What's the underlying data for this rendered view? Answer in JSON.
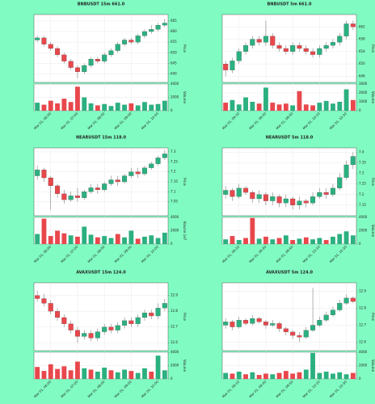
{
  "chart_data": [
    {
      "type": "candlestick",
      "title": "BNBUSDT 15m 661.0",
      "ylabel": "Price",
      "volume_label": "Volume",
      "up_color": "#2bb07f",
      "down_color": "#e8474c",
      "grid": true,
      "open": [
        656,
        657,
        654,
        652,
        649,
        646,
        643,
        641,
        644,
        647,
        646,
        649,
        651,
        654,
        656,
        655,
        658,
        660,
        661,
        663
      ],
      "close": [
        657,
        654,
        652,
        649,
        646,
        643,
        641,
        644,
        647,
        646,
        649,
        651,
        654,
        656,
        655,
        658,
        660,
        661,
        663,
        664
      ],
      "high": [
        658,
        658,
        655,
        653,
        650,
        647,
        644,
        645,
        648,
        648,
        650,
        652,
        655,
        657,
        657,
        659,
        661,
        663,
        664,
        666
      ],
      "low": [
        655,
        653,
        651,
        648,
        645,
        642,
        638,
        640,
        643,
        645,
        645,
        648,
        650,
        653,
        654,
        654,
        657,
        659,
        660,
        662
      ],
      "volume": [
        1200,
        900,
        1500,
        1100,
        1800,
        1300,
        3600,
        2000,
        1100,
        800,
        1000,
        700,
        1200,
        900,
        1100,
        800,
        1300,
        900,
        1000,
        1500
      ],
      "ylim": [
        636,
        668
      ],
      "yticks": [
        640,
        645,
        650,
        655,
        660,
        665
      ],
      "volume_lim": [
        0,
        4000
      ],
      "volume_ticks": [
        0,
        2000,
        4000
      ],
      "xticks": [
        {
          "value": 2,
          "label": "Mar 01, 06:00"
        },
        {
          "value": 6,
          "label": "Mar 01, 07:00"
        },
        {
          "value": 10,
          "label": "Mar 01, 08:00"
        },
        {
          "value": 14,
          "label": "Mar 01, 09:00"
        },
        {
          "value": 18,
          "label": "Mar 01, 10:00"
        }
      ]
    },
    {
      "type": "candlestick",
      "title": "BNBUSDT 5m 661.0",
      "ylabel": "Price",
      "volume_label": "Volume",
      "up_color": "#2bb07f",
      "down_color": "#e8474c",
      "grid": true,
      "open": [
        650,
        648,
        651,
        654,
        656,
        658,
        657,
        659,
        656,
        655,
        654,
        656,
        655,
        654,
        653,
        655,
        656,
        657,
        659,
        663
      ],
      "close": [
        648,
        651,
        654,
        656,
        658,
        657,
        659,
        656,
        655,
        654,
        656,
        655,
        654,
        653,
        655,
        656,
        657,
        659,
        663,
        662
      ],
      "high": [
        651,
        652,
        655,
        657,
        659,
        659,
        664,
        660,
        657,
        656,
        657,
        657,
        656,
        655,
        656,
        657,
        658,
        660,
        664,
        664
      ],
      "low": [
        646,
        647,
        650,
        653,
        655,
        656,
        656,
        655,
        654,
        653,
        653,
        654,
        653,
        652,
        652,
        654,
        655,
        656,
        658,
        661
      ],
      "volume": [
        900,
        1200,
        700,
        1500,
        1000,
        800,
        2600,
        900,
        700,
        800,
        600,
        2200,
        700,
        600,
        900,
        1100,
        800,
        1000,
        2400,
        1200
      ],
      "ylim": [
        644,
        666
      ],
      "yticks": [
        646,
        650,
        654,
        658,
        662
      ],
      "volume_lim": [
        0,
        3000
      ],
      "volume_ticks": [
        0,
        1000,
        2000,
        3000
      ],
      "xticks": [
        {
          "value": 2,
          "label": "Mar 01, 09:10"
        },
        {
          "value": 6,
          "label": "Mar 01, 09:30"
        },
        {
          "value": 10,
          "label": "Mar 01, 09:50"
        },
        {
          "value": 14,
          "label": "Mar 01, 10:10"
        },
        {
          "value": 18,
          "label": "Mar 01, 10:30"
        }
      ]
    },
    {
      "type": "candlestick",
      "title": "NEARUSDT 15m 118.0",
      "ylabel": "Price",
      "volume_label": "Volume 1e7",
      "up_color": "#2bb07f",
      "down_color": "#e8474c",
      "grid": true,
      "open": [
        7.18,
        7.21,
        7.17,
        7.13,
        7.09,
        7.06,
        7.08,
        7.07,
        7.1,
        7.12,
        7.11,
        7.14,
        7.16,
        7.15,
        7.18,
        7.2,
        7.19,
        7.22,
        7.24,
        7.27
      ],
      "close": [
        7.21,
        7.17,
        7.13,
        7.09,
        7.06,
        7.08,
        7.07,
        7.1,
        7.12,
        7.11,
        7.14,
        7.16,
        7.15,
        7.18,
        7.2,
        7.19,
        7.22,
        7.24,
        7.27,
        7.29
      ],
      "high": [
        7.23,
        7.22,
        7.18,
        7.14,
        7.11,
        7.1,
        7.12,
        7.11,
        7.14,
        7.14,
        7.15,
        7.18,
        7.18,
        7.19,
        7.22,
        7.22,
        7.23,
        7.25,
        7.28,
        7.31
      ],
      "low": [
        7.16,
        7.15,
        7.01,
        7.07,
        7.04,
        7.05,
        7.05,
        7.06,
        7.09,
        7.09,
        7.1,
        7.13,
        7.13,
        7.14,
        7.17,
        7.17,
        7.18,
        7.21,
        7.23,
        7.26
      ],
      "volume": [
        1500,
        3800,
        1200,
        2000,
        1600,
        1300,
        1100,
        2600,
        1400,
        1000,
        1200,
        900,
        1500,
        1000,
        2000,
        800,
        1100,
        1300,
        900,
        1700
      ],
      "ylim": [
        6.98,
        7.32
      ],
      "yticks": [
        7.05,
        7.1,
        7.15,
        7.2,
        7.25,
        7.3
      ],
      "volume_lim": [
        0,
        4000
      ],
      "volume_ticks": [
        0,
        2000,
        4000
      ],
      "xticks": [
        {
          "value": 2,
          "label": "Mar 01, 06:00"
        },
        {
          "value": 6,
          "label": "Mar 01, 07:00"
        },
        {
          "value": 10,
          "label": "Mar 01, 08:00"
        },
        {
          "value": 14,
          "label": "Mar 01, 09:00"
        },
        {
          "value": 18,
          "label": "Mar 01, 10:00"
        }
      ]
    },
    {
      "type": "candlestick",
      "title": "NEARUSDT 5m 118.0",
      "ylabel": "Price",
      "volume_label": "Volume",
      "up_color": "#2bb07f",
      "down_color": "#e8474c",
      "grid": true,
      "open": [
        7.2,
        7.22,
        7.19,
        7.23,
        7.21,
        7.18,
        7.2,
        7.17,
        7.19,
        7.16,
        7.18,
        7.15,
        7.17,
        7.16,
        7.19,
        7.21,
        7.2,
        7.23,
        7.28,
        7.34
      ],
      "close": [
        7.22,
        7.19,
        7.23,
        7.21,
        7.18,
        7.2,
        7.17,
        7.19,
        7.16,
        7.18,
        7.15,
        7.17,
        7.16,
        7.19,
        7.21,
        7.2,
        7.23,
        7.28,
        7.34,
        7.38
      ],
      "high": [
        7.24,
        7.23,
        7.25,
        7.24,
        7.22,
        7.22,
        7.21,
        7.21,
        7.2,
        7.2,
        7.19,
        7.19,
        7.18,
        7.21,
        7.23,
        7.23,
        7.25,
        7.3,
        7.36,
        7.4
      ],
      "low": [
        7.18,
        7.17,
        7.18,
        7.2,
        7.16,
        7.16,
        7.15,
        7.15,
        7.14,
        7.14,
        7.13,
        7.13,
        7.14,
        7.15,
        7.18,
        7.18,
        7.19,
        7.22,
        7.27,
        7.32
      ],
      "volume": [
        700,
        1200,
        600,
        900,
        3900,
        800,
        1100,
        700,
        900,
        1300,
        600,
        800,
        1000,
        700,
        900,
        600,
        1100,
        1500,
        1900,
        1300
      ],
      "ylim": [
        7.1,
        7.42
      ],
      "yticks": [
        7.15,
        7.2,
        7.25,
        7.3,
        7.35,
        7.4
      ],
      "volume_lim": [
        0,
        4000
      ],
      "volume_ticks": [
        0,
        2000,
        4000
      ],
      "xticks": [
        {
          "value": 2,
          "label": "Mar 01, 09:10"
        },
        {
          "value": 6,
          "label": "Mar 01, 09:30"
        },
        {
          "value": 10,
          "label": "Mar 01, 09:50"
        },
        {
          "value": 14,
          "label": "Mar 01, 10:10"
        },
        {
          "value": 18,
          "label": "Mar 01, 10:30"
        }
      ]
    },
    {
      "type": "candlestick",
      "title": "AVAXUSDT 15m 124.0",
      "ylabel": "Price",
      "volume_label": "Volume",
      "up_color": "#2bb07f",
      "down_color": "#e8474c",
      "grid": true,
      "open": [
        12.9,
        12.88,
        12.85,
        12.8,
        12.76,
        12.72,
        12.68,
        12.64,
        12.66,
        12.63,
        12.67,
        12.7,
        12.68,
        12.71,
        12.74,
        12.72,
        12.76,
        12.79,
        12.77,
        12.82
      ],
      "close": [
        12.88,
        12.85,
        12.8,
        12.76,
        12.72,
        12.68,
        12.64,
        12.66,
        12.63,
        12.67,
        12.7,
        12.68,
        12.71,
        12.74,
        12.72,
        12.76,
        12.79,
        12.77,
        12.82,
        12.85
      ],
      "high": [
        12.93,
        12.91,
        12.87,
        12.82,
        12.78,
        12.74,
        12.7,
        12.68,
        12.68,
        12.69,
        12.72,
        12.72,
        12.73,
        12.76,
        12.76,
        12.78,
        12.81,
        12.81,
        12.85,
        12.88
      ],
      "low": [
        12.86,
        12.83,
        12.78,
        12.74,
        12.7,
        12.66,
        12.6,
        12.62,
        12.61,
        12.61,
        12.65,
        12.66,
        12.66,
        12.69,
        12.7,
        12.7,
        12.74,
        12.75,
        12.75,
        12.8
      ],
      "volume": [
        1800,
        1200,
        2200,
        1500,
        1900,
        1300,
        2600,
        1600,
        1400,
        1100,
        1700,
        1300,
        1000,
        1400,
        1200,
        900,
        1600,
        1100,
        3500,
        1300
      ],
      "ylim": [
        12.55,
        12.98
      ],
      "yticks": [
        12.6,
        12.7,
        12.8,
        12.9
      ],
      "volume_lim": [
        0,
        4000
      ],
      "volume_ticks": [
        0,
        2000,
        4000
      ],
      "xticks": [
        {
          "value": 2,
          "label": "Mar 01, 06:00"
        },
        {
          "value": 6,
          "label": "Mar 01, 07:00"
        },
        {
          "value": 10,
          "label": "Mar 01, 08:00"
        },
        {
          "value": 14,
          "label": "Mar 01, 09:00"
        },
        {
          "value": 18,
          "label": "Mar 01, 10:00"
        }
      ]
    },
    {
      "type": "candlestick",
      "title": "AVAXUSDT 5m 124.0",
      "ylabel": "Price",
      "volume_label": "Volume",
      "up_color": "#2bb07f",
      "down_color": "#e8474c",
      "grid": true,
      "open": [
        12.7,
        12.72,
        12.69,
        12.73,
        12.71,
        12.74,
        12.72,
        12.7,
        12.71,
        12.68,
        12.66,
        12.64,
        12.63,
        12.67,
        12.7,
        12.73,
        12.76,
        12.79,
        12.83,
        12.86
      ],
      "close": [
        12.72,
        12.69,
        12.73,
        12.71,
        12.74,
        12.72,
        12.7,
        12.71,
        12.68,
        12.66,
        12.64,
        12.63,
        12.67,
        12.7,
        12.73,
        12.76,
        12.79,
        12.83,
        12.86,
        12.84
      ],
      "high": [
        12.74,
        12.73,
        12.75,
        12.74,
        12.76,
        12.75,
        12.73,
        12.73,
        12.72,
        12.69,
        12.67,
        12.66,
        12.69,
        12.92,
        12.75,
        12.78,
        12.81,
        12.85,
        12.88,
        12.87
      ],
      "low": [
        12.68,
        12.67,
        12.68,
        12.7,
        12.7,
        12.71,
        12.68,
        12.69,
        12.66,
        12.64,
        12.62,
        12.6,
        12.62,
        12.66,
        12.69,
        12.72,
        12.75,
        12.78,
        12.82,
        12.83
      ],
      "volume": [
        900,
        800,
        1100,
        700,
        1000,
        600,
        800,
        700,
        900,
        1200,
        800,
        1000,
        1400,
        3900,
        900,
        1100,
        800,
        1000,
        700,
        900
      ],
      "ylim": [
        12.55,
        12.95
      ],
      "yticks": [
        12.6,
        12.7,
        12.8,
        12.9
      ],
      "volume_lim": [
        0,
        4000
      ],
      "volume_ticks": [
        0,
        2000,
        4000
      ],
      "xticks": [
        {
          "value": 2,
          "label": "Mar 01, 09:10"
        },
        {
          "value": 6,
          "label": "Mar 01, 09:30"
        },
        {
          "value": 10,
          "label": "Mar 01, 09:50"
        },
        {
          "value": 14,
          "label": "Mar 01, 10:10"
        },
        {
          "value": 18,
          "label": "Mar 01, 10:30"
        }
      ]
    }
  ]
}
